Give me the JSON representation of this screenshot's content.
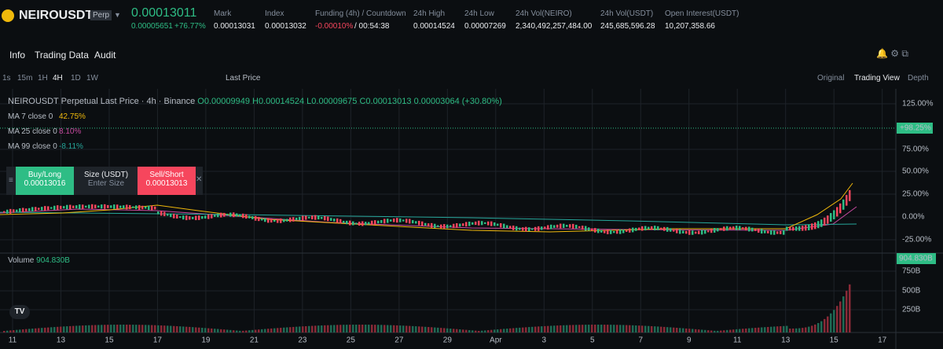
{
  "header": {
    "symbol": "NEIROUSDT",
    "badge": "Perp",
    "price": "0.00013011",
    "change": "0.00005651",
    "change_pct": "+76.77%",
    "stats": [
      {
        "label": "Mark",
        "value": "0.00013031"
      },
      {
        "label": "Index",
        "value": "0.00013032"
      },
      {
        "label": "Funding (4h) / Countdown",
        "value": "-0.00010%",
        "extra": "/ 00:54:38"
      },
      {
        "label": "24h High",
        "value": "0.00014524"
      },
      {
        "label": "24h Low",
        "value": "0.00007269"
      },
      {
        "label": "24h Vol(NEIRO)",
        "value": "2,340,492,257,484.00"
      },
      {
        "label": "24h Vol(USDT)",
        "value": "245,685,596.28"
      },
      {
        "label": "Open Interest(USDT)",
        "value": "10,207,358.66"
      }
    ]
  },
  "tabs": [
    "Info",
    "Trading Data",
    "Audit"
  ],
  "toolbar": {
    "intervals": [
      "1s",
      "15m",
      "1H",
      "4H",
      "1D",
      "1W"
    ],
    "price_type": "Last Price",
    "views": [
      "Original",
      "Trading View",
      "Depth"
    ]
  },
  "legend": {
    "title": "NEIROUSDT Perpetual Last Price · 4h · Binance",
    "open": "O0.00009949",
    "high": "H0.00014524",
    "low": "L0.00009675",
    "close": "C0.00013013",
    "change": "0.00003064 (+30.80%)",
    "mas": [
      {
        "label": "MA 7 close 0",
        "value": "42.75%"
      },
      {
        "label": "MA 25 close 0",
        "value": "8.10%"
      },
      {
        "label": "MA 99 close 0",
        "value": "-8.11%"
      }
    ]
  },
  "order": {
    "buy_label": "Buy/Long",
    "buy_price": "0.00013016",
    "size_label": "Size (USDT)",
    "size_placeholder": "Enter Size",
    "sell_label": "Sell/Short",
    "sell_price": "0.00013013"
  },
  "price_axis": {
    "ticks": [
      "125.00%",
      "75.00%",
      "50.00%",
      "25.00%",
      "0.00%",
      "-25.00%"
    ],
    "current": "+98.25%"
  },
  "volume": {
    "label": "Volume",
    "value": "904.830B",
    "ticks": [
      "750B",
      "500B",
      "250B"
    ],
    "current": "904.830B"
  },
  "x_axis": [
    "11",
    "13",
    "15",
    "17",
    "19",
    "21",
    "23",
    "25",
    "27",
    "29",
    "Apr",
    "3",
    "5",
    "7",
    "9",
    "11",
    "13",
    "15",
    "17"
  ]
}
